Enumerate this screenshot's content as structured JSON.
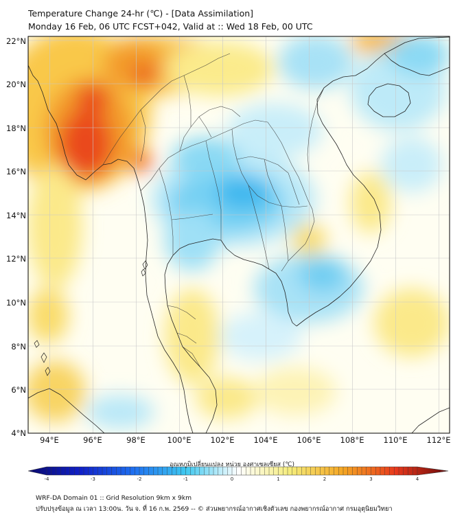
{
  "header": {
    "title_line1": "Temperature Change 24-hr (℃) - [Data Assimilation]",
    "title_line2": "Monday 16 Feb, 06 UTC FCST+042, Valid at :: Wed 18 Feb, 00 UTC"
  },
  "map": {
    "lat_labels": [
      "22°N",
      "20°N",
      "18°N",
      "16°N",
      "14°N",
      "12°N",
      "10°N",
      "8°N",
      "6°N",
      "4°N"
    ],
    "lon_labels": [
      "94°E",
      "96°E",
      "98°E",
      "100°E",
      "102°E",
      "104°E",
      "106°E",
      "108°E",
      "110°E",
      "112°E"
    ],
    "extent": {
      "lon_min": 93,
      "lon_max": 112.5,
      "lat_min": 4,
      "lat_max": 22.2
    }
  },
  "colorbar": {
    "label": "อุณหภูมิเปลี่ยนแปลง หน่วย องศาเซลเซียส (℃)",
    "min": -4,
    "max": 4,
    "ticks": [
      "-4",
      "-3",
      "-2",
      "-1",
      "0",
      "1",
      "2",
      "3",
      "4"
    ],
    "colors": [
      "#0a0a6e",
      "#1020c8",
      "#1e6ff0",
      "#3ec8f0",
      "#ffffff",
      "#f5ec7a",
      "#f5a623",
      "#e8381c",
      "#6b0a0a"
    ]
  },
  "footer": {
    "line1": "WRF-DA Domain 01 :: Grid Resolution 9km x 9km",
    "line2": "ปรับปรุงข้อมูล ณ เวลา 13:00น. วัน จ. ที่ 16 ก.พ. 2569 -- © ส่วนพยากรณ์อากาศเชิงตัวเลข กองพยากรณ์อากาศ กรมอุตุนิยมวิทยา"
  }
}
